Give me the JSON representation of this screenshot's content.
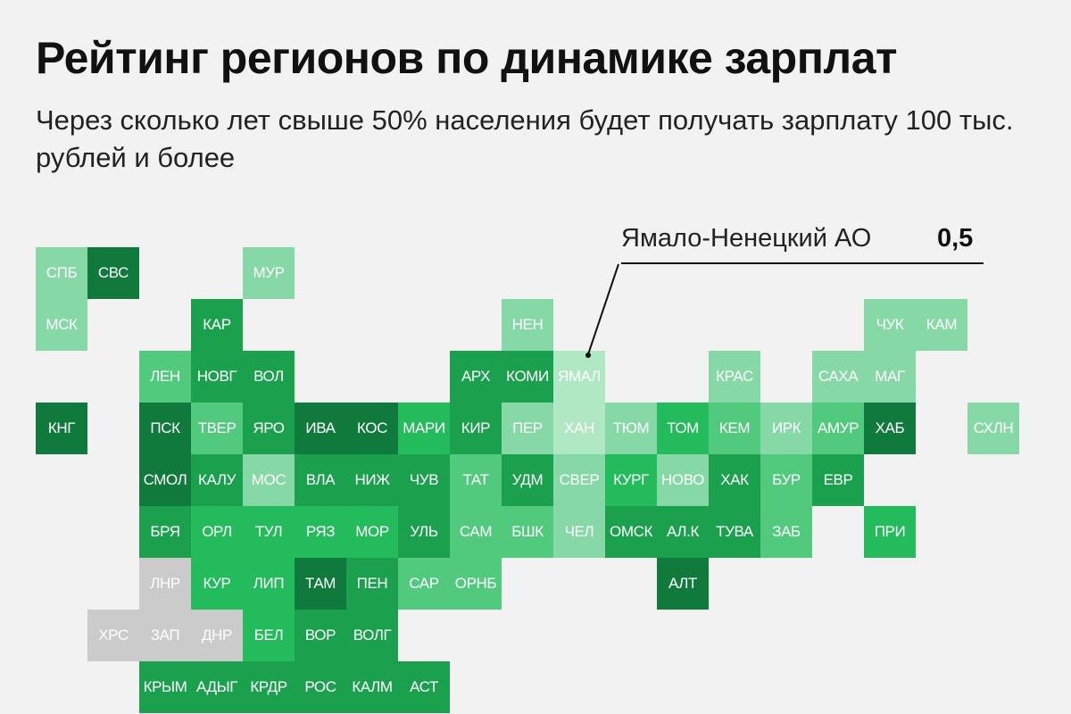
{
  "chart_data": {
    "type": "heatmap",
    "title": "Рейтинг регионов по динамике зарплат",
    "subtitle": "Через сколько лет свыше 50% населения будет получать зарплату 100 тыс. рублей и более",
    "annotation": {
      "region": "Ямало-Ненецкий АО",
      "value": "0,5"
    },
    "colors": {
      "xlight": "#b0e8c4",
      "light": "#86d9a6",
      "mid": "#52ca7e",
      "bright": "#24bb5c",
      "strong": "#1ba04d",
      "dark": "#107a3c",
      "gray": "#cbcbcb"
    },
    "cells": [
      {
        "label": "СПБ",
        "col": 0,
        "row": 0,
        "level": "light"
      },
      {
        "label": "СВС",
        "col": 1,
        "row": 0,
        "level": "dark"
      },
      {
        "label": "МУР",
        "col": 4,
        "row": 0,
        "level": "light"
      },
      {
        "label": "МСК",
        "col": 0,
        "row": 1,
        "level": "light"
      },
      {
        "label": "КАР",
        "col": 3,
        "row": 1,
        "level": "strong"
      },
      {
        "label": "НЕН",
        "col": 9,
        "row": 1,
        "level": "light"
      },
      {
        "label": "ЧУК",
        "col": 16,
        "row": 1,
        "level": "light"
      },
      {
        "label": "КАМ",
        "col": 17,
        "row": 1,
        "level": "light"
      },
      {
        "label": "ЛЕН",
        "col": 2,
        "row": 2,
        "level": "mid"
      },
      {
        "label": "НОВГ",
        "col": 3,
        "row": 2,
        "level": "strong"
      },
      {
        "label": "ВОЛ",
        "col": 4,
        "row": 2,
        "level": "strong"
      },
      {
        "label": "АРХ",
        "col": 8,
        "row": 2,
        "level": "strong"
      },
      {
        "label": "КОМИ",
        "col": 9,
        "row": 2,
        "level": "strong"
      },
      {
        "label": "ЯМАЛ",
        "col": 10,
        "row": 2,
        "level": "xlight"
      },
      {
        "label": "КРАС",
        "col": 13,
        "row": 2,
        "level": "light"
      },
      {
        "label": "САХА",
        "col": 15,
        "row": 2,
        "level": "light"
      },
      {
        "label": "МАГ",
        "col": 16,
        "row": 2,
        "level": "light"
      },
      {
        "label": "КНГ",
        "col": 0,
        "row": 3,
        "level": "dark"
      },
      {
        "label": "ПСК",
        "col": 2,
        "row": 3,
        "level": "dark"
      },
      {
        "label": "ТВЕР",
        "col": 3,
        "row": 3,
        "level": "mid"
      },
      {
        "label": "ЯРО",
        "col": 4,
        "row": 3,
        "level": "strong"
      },
      {
        "label": "ИВА",
        "col": 5,
        "row": 3,
        "level": "dark"
      },
      {
        "label": "КОС",
        "col": 6,
        "row": 3,
        "level": "dark"
      },
      {
        "label": "МАРИ",
        "col": 7,
        "row": 3,
        "level": "bright"
      },
      {
        "label": "КИР",
        "col": 8,
        "row": 3,
        "level": "strong"
      },
      {
        "label": "ПЕР",
        "col": 9,
        "row": 3,
        "level": "light"
      },
      {
        "label": "ХАН",
        "col": 10,
        "row": 3,
        "level": "xlight"
      },
      {
        "label": "ТЮМ",
        "col": 11,
        "row": 3,
        "level": "light"
      },
      {
        "label": "ТОМ",
        "col": 12,
        "row": 3,
        "level": "bright"
      },
      {
        "label": "КЕМ",
        "col": 13,
        "row": 3,
        "level": "mid"
      },
      {
        "label": "ИРК",
        "col": 14,
        "row": 3,
        "level": "light"
      },
      {
        "label": "АМУР",
        "col": 15,
        "row": 3,
        "level": "mid"
      },
      {
        "label": "ХАБ",
        "col": 16,
        "row": 3,
        "level": "dark"
      },
      {
        "label": "СХЛН",
        "col": 18,
        "row": 3,
        "level": "light"
      },
      {
        "label": "СМОЛ",
        "col": 2,
        "row": 4,
        "level": "dark"
      },
      {
        "label": "КАЛУ",
        "col": 3,
        "row": 4,
        "level": "strong"
      },
      {
        "label": "МОС",
        "col": 4,
        "row": 4,
        "level": "light"
      },
      {
        "label": "ВЛА",
        "col": 5,
        "row": 4,
        "level": "strong"
      },
      {
        "label": "НИЖ",
        "col": 6,
        "row": 4,
        "level": "strong"
      },
      {
        "label": "ЧУВ",
        "col": 7,
        "row": 4,
        "level": "strong"
      },
      {
        "label": "ТАТ",
        "col": 8,
        "row": 4,
        "level": "mid"
      },
      {
        "label": "УДМ",
        "col": 9,
        "row": 4,
        "level": "strong"
      },
      {
        "label": "СВЕР",
        "col": 10,
        "row": 4,
        "level": "light"
      },
      {
        "label": "КУРГ",
        "col": 11,
        "row": 4,
        "level": "bright"
      },
      {
        "label": "НОВО",
        "col": 12,
        "row": 4,
        "level": "light"
      },
      {
        "label": "ХАК",
        "col": 13,
        "row": 4,
        "level": "strong"
      },
      {
        "label": "БУР",
        "col": 14,
        "row": 4,
        "level": "mid"
      },
      {
        "label": "ЕВР",
        "col": 15,
        "row": 4,
        "level": "strong"
      },
      {
        "label": "БРЯ",
        "col": 2,
        "row": 5,
        "level": "strong"
      },
      {
        "label": "ОРЛ",
        "col": 3,
        "row": 5,
        "level": "bright"
      },
      {
        "label": "ТУЛ",
        "col": 4,
        "row": 5,
        "level": "bright"
      },
      {
        "label": "РЯЗ",
        "col": 5,
        "row": 5,
        "level": "bright"
      },
      {
        "label": "МОР",
        "col": 6,
        "row": 5,
        "level": "bright"
      },
      {
        "label": "УЛЬ",
        "col": 7,
        "row": 5,
        "level": "strong"
      },
      {
        "label": "САМ",
        "col": 8,
        "row": 5,
        "level": "mid"
      },
      {
        "label": "БШК",
        "col": 9,
        "row": 5,
        "level": "mid"
      },
      {
        "label": "ЧЕЛ",
        "col": 10,
        "row": 5,
        "level": "light"
      },
      {
        "label": "ОМСК",
        "col": 11,
        "row": 5,
        "level": "strong"
      },
      {
        "label": "АЛ.К",
        "col": 12,
        "row": 5,
        "level": "strong"
      },
      {
        "label": "ТУВА",
        "col": 13,
        "row": 5,
        "level": "strong"
      },
      {
        "label": "ЗАБ",
        "col": 14,
        "row": 5,
        "level": "mid"
      },
      {
        "label": "ПРИ",
        "col": 16,
        "row": 5,
        "level": "bright"
      },
      {
        "label": "ЛНР",
        "col": 2,
        "row": 6,
        "level": "gray"
      },
      {
        "label": "КУР",
        "col": 3,
        "row": 6,
        "level": "bright"
      },
      {
        "label": "ЛИП",
        "col": 4,
        "row": 6,
        "level": "bright"
      },
      {
        "label": "ТАМ",
        "col": 5,
        "row": 6,
        "level": "dark"
      },
      {
        "label": "ПЕН",
        "col": 6,
        "row": 6,
        "level": "strong"
      },
      {
        "label": "САР",
        "col": 7,
        "row": 6,
        "level": "mid"
      },
      {
        "label": "ОРНБ",
        "col": 8,
        "row": 6,
        "level": "mid"
      },
      {
        "label": "АЛТ",
        "col": 12,
        "row": 6,
        "level": "dark"
      },
      {
        "label": "ХРС",
        "col": 1,
        "row": 7,
        "level": "gray"
      },
      {
        "label": "ЗАП",
        "col": 2,
        "row": 7,
        "level": "gray"
      },
      {
        "label": "ДНР",
        "col": 3,
        "row": 7,
        "level": "gray"
      },
      {
        "label": "БЕЛ",
        "col": 4,
        "row": 7,
        "level": "bright"
      },
      {
        "label": "ВОР",
        "col": 5,
        "row": 7,
        "level": "strong"
      },
      {
        "label": "ВОЛГ",
        "col": 6,
        "row": 7,
        "level": "strong"
      },
      {
        "label": "КРЫМ",
        "col": 2,
        "row": 8,
        "level": "strong"
      },
      {
        "label": "АДЫГ",
        "col": 3,
        "row": 8,
        "level": "strong"
      },
      {
        "label": "КРДР",
        "col": 4,
        "row": 8,
        "level": "strong"
      },
      {
        "label": "РОС",
        "col": 5,
        "row": 8,
        "level": "strong"
      },
      {
        "label": "КАЛМ",
        "col": 6,
        "row": 8,
        "level": "strong"
      },
      {
        "label": "АСТ",
        "col": 7,
        "row": 8,
        "level": "strong"
      }
    ]
  }
}
